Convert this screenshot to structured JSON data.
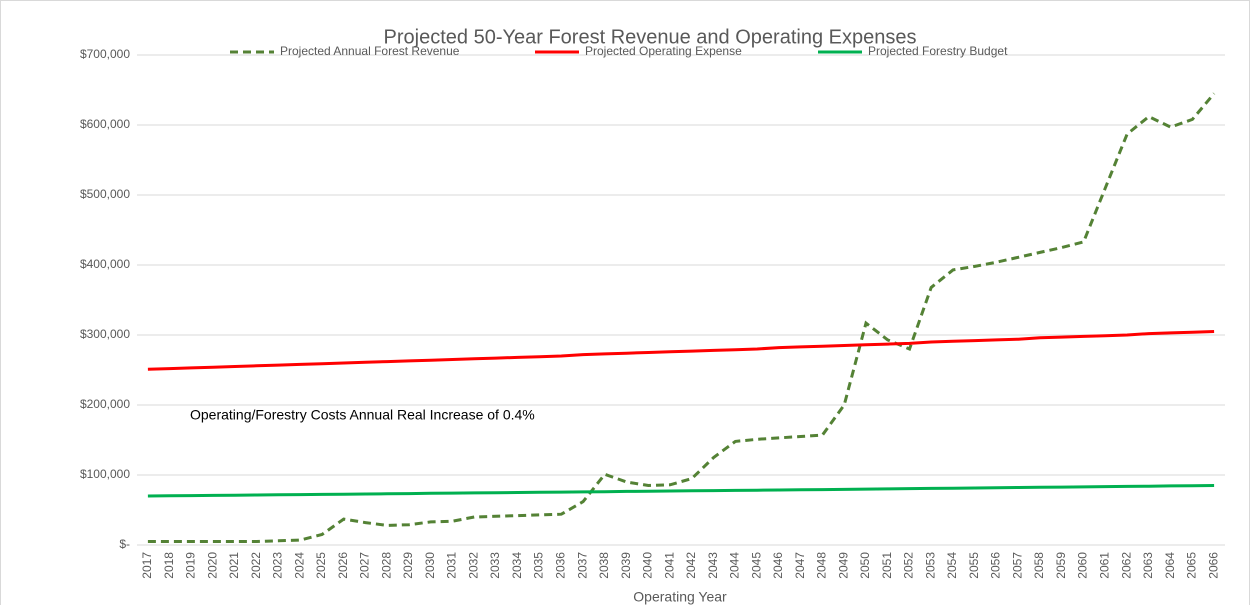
{
  "chart_data": {
    "type": "line",
    "title": "Projected 50-Year Forest Revenue and Operating Expenses",
    "x_label": "Operating Year",
    "annotation": "Operating/Forestry Costs Annual Real Increase of 0.4%",
    "categories": [
      "2017",
      "2018",
      "2019",
      "2020",
      "2021",
      "2022",
      "2023",
      "2024",
      "2025",
      "2026",
      "2027",
      "2028",
      "2029",
      "2030",
      "2031",
      "2032",
      "2033",
      "2034",
      "2035",
      "2036",
      "2037",
      "2038",
      "2039",
      "2040",
      "2041",
      "2042",
      "2043",
      "2044",
      "2045",
      "2046",
      "2047",
      "2048",
      "2049",
      "2050",
      "2051",
      "2052",
      "2053",
      "2054",
      "2055",
      "2056",
      "2057",
      "2058",
      "2059",
      "2060",
      "2061",
      "2062",
      "2063",
      "2064",
      "2065",
      "2066"
    ],
    "series": [
      {
        "name": "Projected Annual Forest Revenue",
        "color": "#548235",
        "style": "dashed",
        "values": [
          5000,
          5000,
          5000,
          5000,
          5000,
          5000,
          6000,
          7000,
          15000,
          37000,
          32000,
          28000,
          29000,
          33000,
          34000,
          40000,
          41000,
          42000,
          43000,
          44000,
          62000,
          101000,
          90000,
          85000,
          86000,
          95000,
          125000,
          148000,
          151000,
          153000,
          155000,
          157000,
          200000,
          317000,
          293000,
          280000,
          368000,
          393000,
          398000,
          404000,
          411000,
          418000,
          425000,
          433000,
          510000,
          587000,
          612000,
          597000,
          608000,
          645000
        ]
      },
      {
        "name": "Projected Operating Expense",
        "color": "#ff0000",
        "style": "solid",
        "values": [
          251000,
          252000,
          253000,
          254000,
          255000,
          256000,
          257000,
          258000,
          259000,
          260000,
          261000,
          262000,
          263000,
          264000,
          265000,
          266000,
          267000,
          268000,
          269000,
          270000,
          272000,
          273000,
          274000,
          275000,
          276000,
          277000,
          278000,
          279000,
          280000,
          282000,
          283000,
          284000,
          285000,
          286000,
          287000,
          288000,
          290000,
          291000,
          292000,
          293000,
          294000,
          296000,
          297000,
          298000,
          299000,
          300000,
          302000,
          303000,
          304000,
          305000
        ]
      },
      {
        "name": "Projected Forestry Budget",
        "color": "#00b050",
        "style": "solid",
        "values": [
          70000,
          70300,
          70600,
          70800,
          71100,
          71400,
          71700,
          72000,
          72300,
          72600,
          72900,
          73200,
          73500,
          73800,
          74100,
          74400,
          74700,
          75000,
          75300,
          75600,
          75900,
          76200,
          76500,
          76800,
          77100,
          77400,
          77700,
          78000,
          78300,
          78600,
          78900,
          79200,
          79500,
          79800,
          80200,
          80500,
          80800,
          81100,
          81400,
          81700,
          82100,
          82400,
          82700,
          83000,
          83400,
          83700,
          84000,
          84400,
          84700,
          85000
        ]
      }
    ],
    "ylim": [
      0,
      700000
    ],
    "yticks": [
      {
        "value": 0,
        "label": "$-"
      },
      {
        "value": 100000,
        "label": "$100,000"
      },
      {
        "value": 200000,
        "label": "$200,000"
      },
      {
        "value": 300000,
        "label": "$300,000"
      },
      {
        "value": 400000,
        "label": "$400,000"
      },
      {
        "value": 500000,
        "label": "$500,000"
      },
      {
        "value": 600000,
        "label": "$600,000"
      },
      {
        "value": 700000,
        "label": "$700,000"
      }
    ],
    "grid": true,
    "legend": "top"
  }
}
